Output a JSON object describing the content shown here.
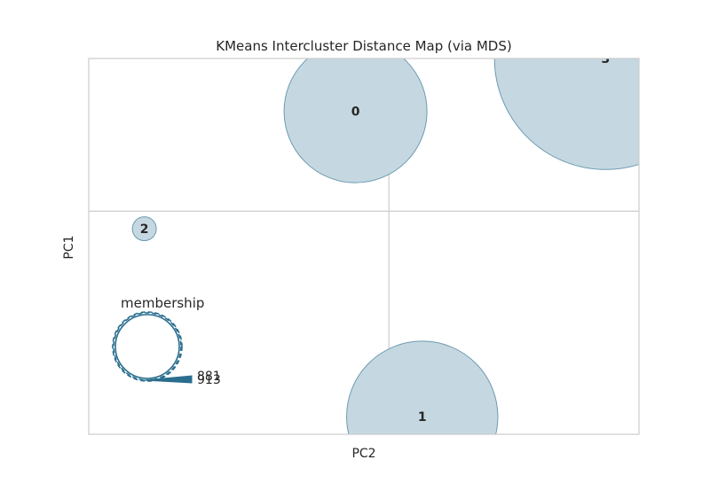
{
  "chart_data": {
    "type": "scatter",
    "title": "KMeans Intercluster Distance Map (via MDS)",
    "xlabel": "PC2",
    "ylabel": "PC1",
    "grid": true,
    "clusters": [
      {
        "label": "0",
        "pc2": 0.0,
        "pc1": 1.5,
        "members": 500
      },
      {
        "label": "1",
        "pc2": 1.2,
        "pc1": -3.7,
        "members": 560
      },
      {
        "label": "2",
        "pc2": -3.8,
        "pc1": -0.5,
        "members": 14
      },
      {
        "label": "3",
        "pc2": 4.5,
        "pc1": 2.4,
        "members": 1210
      }
    ],
    "xlim": [
      -4.8,
      5.1
    ],
    "ylim": [
      -4.0,
      2.4
    ],
    "xgrid": [
      0.6
    ],
    "ygrid": [
      -0.2
    ],
    "legend": {
      "title": "membership",
      "placement": "lower-left",
      "values": [
        "881",
        "913"
      ]
    },
    "colors": {
      "fill": "#c5d8e1",
      "stroke": "#6d9ab1",
      "legend_stroke": "#2a6e8e",
      "grid": "#cccccc",
      "axes": "#cccccc",
      "text": "#262626"
    }
  }
}
